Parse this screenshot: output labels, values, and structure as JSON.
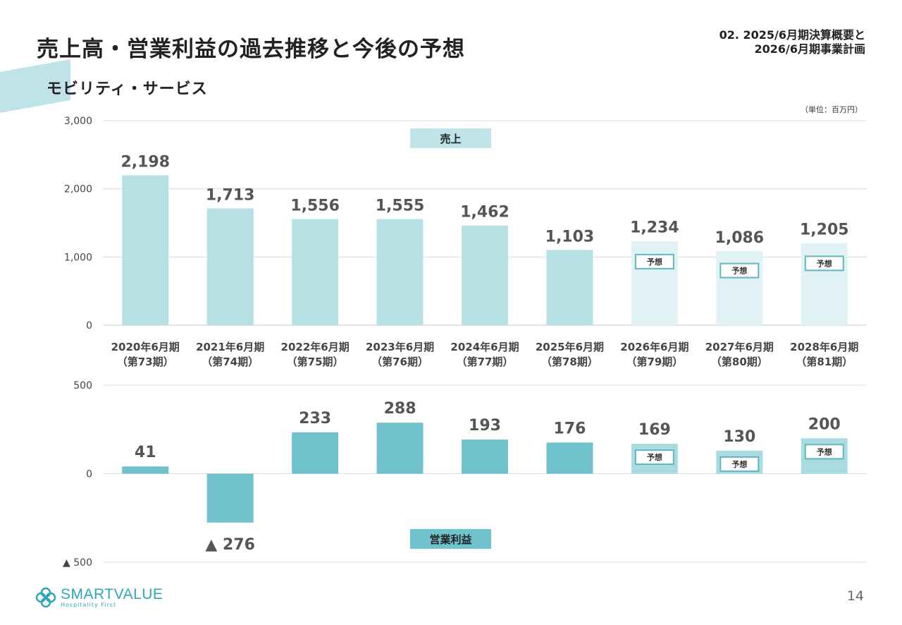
{
  "header": {
    "title": "売上高・営業利益の過去推移と今後の予想",
    "section": "モビリティ・サービス",
    "top_right_line1": "02. 2025/6月期決算概要と",
    "top_right_line2": "2026/6月期事業計画",
    "unit": "（単位：百万円）"
  },
  "footer": {
    "page_number": "14",
    "logo_main": "SMARTVALUE",
    "logo_sub": "Hospitality First"
  },
  "colors": {
    "accent": "#bfe3e8",
    "actual_sales": "#b7e0e5",
    "forecast_sales": "#e1f2f4",
    "actual_profit": "#70c3cc",
    "forecast_profit": "#a8dce1",
    "box_border": "#5fb8c3",
    "value_text": "#555555"
  },
  "chart_data": [
    {
      "type": "bar",
      "series_label": "売上",
      "categories": [
        "2020年6月期",
        "2021年6月期",
        "2022年6月期",
        "2023年6月期",
        "2024年6月期",
        "2025年6月期",
        "2026年6月期",
        "2027年6月期",
        "2028年6月期"
      ],
      "sub_categories": [
        "（第73期）",
        "（第74期）",
        "（第75期）",
        "（第76期）",
        "（第77期）",
        "（第78期）",
        "（第79期）",
        "（第80期）",
        "（第81期）"
      ],
      "values": [
        2198,
        1713,
        1556,
        1555,
        1462,
        1103,
        1234,
        1086,
        1205
      ],
      "value_labels": [
        "2,198",
        "1,713",
        "1,556",
        "1,555",
        "1,462",
        "1,103",
        "1,234",
        "1,086",
        "1,205"
      ],
      "forecast": [
        false,
        false,
        false,
        false,
        false,
        false,
        true,
        true,
        true
      ],
      "forecast_label": "予想",
      "ylim": [
        0,
        3000
      ],
      "yticks": [
        0,
        1000,
        2000,
        3000
      ],
      "ytick_labels": [
        "0",
        "1,000",
        "2,000",
        "3,000"
      ],
      "grid": true
    },
    {
      "type": "bar",
      "series_label": "営業利益",
      "categories": [
        "2020年6月期",
        "2021年6月期",
        "2022年6月期",
        "2023年6月期",
        "2024年6月期",
        "2025年6月期",
        "2026年6月期",
        "2027年6月期",
        "2028年6月期"
      ],
      "values": [
        41,
        -276,
        233,
        288,
        193,
        176,
        169,
        130,
        200
      ],
      "value_labels": [
        "41",
        "▲ 276",
        "233",
        "288",
        "193",
        "176",
        "169",
        "130",
        "200"
      ],
      "forecast": [
        false,
        false,
        false,
        false,
        false,
        false,
        true,
        true,
        true
      ],
      "forecast_label": "予想",
      "ylim": [
        -500,
        500
      ],
      "yticks": [
        -500,
        0,
        500
      ],
      "ytick_labels": [
        "▲ 500",
        "0",
        "500"
      ],
      "grid": true
    }
  ]
}
